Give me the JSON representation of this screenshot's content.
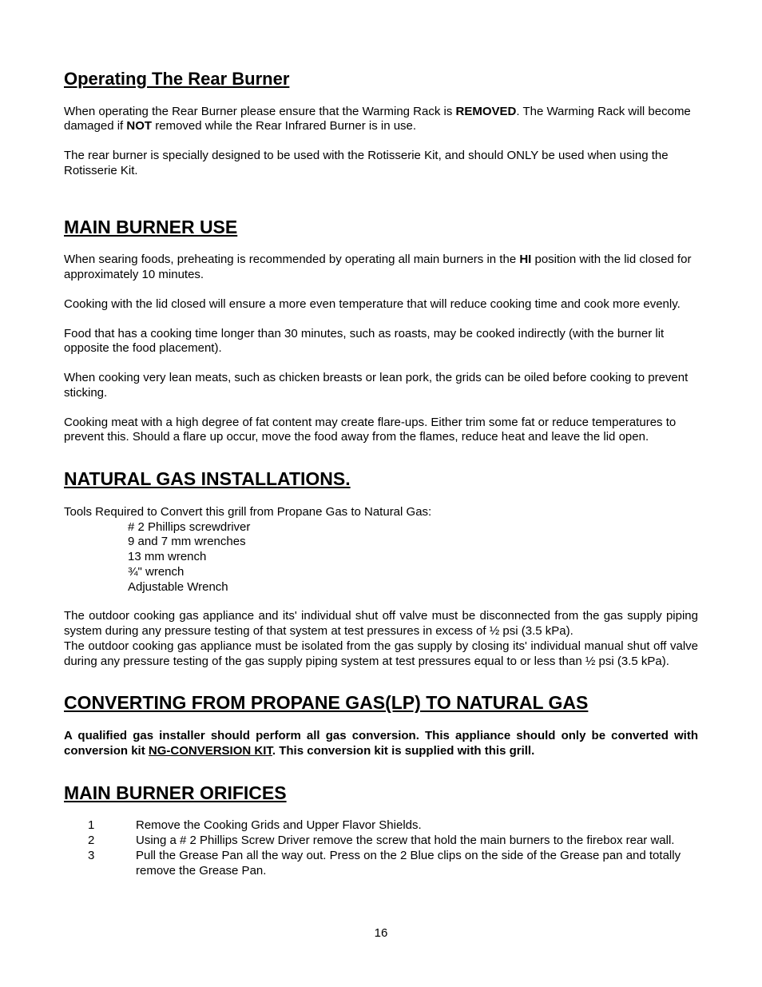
{
  "page_number": "16",
  "colors": {
    "text": "#000000",
    "background": "#ffffff"
  },
  "typography": {
    "body_font": "Arial",
    "body_size_pt": 11,
    "h1_size_pt": 17,
    "h1_weight": "bold",
    "h1_underline": true
  },
  "sections": {
    "rear_burner": {
      "title": "Operating The Rear Burner",
      "p1_a": "When operating the Rear Burner please ensure that the Warming Rack is ",
      "p1_b_bold": "REMOVED",
      "p1_c": ". The Warming Rack will become damaged if ",
      "p1_d_bold": "NOT",
      "p1_e": " removed while the Rear Infrared Burner is in use.",
      "p2": "The rear burner is specially designed to be used with the Rotisserie Kit, and should ONLY be used when using the Rotisserie Kit."
    },
    "main_burner_use": {
      "title": "MAIN BURNER USE",
      "p1_a": "When searing foods, preheating is recommended by operating all main burners in the ",
      "p1_b_bold": "HI",
      "p1_c": " position with the lid closed for approximately 10 minutes.",
      "p2": "Cooking with the lid closed will ensure a more even temperature that will reduce cooking time and cook more evenly.",
      "p3": "Food that has a cooking time longer than 30 minutes, such as roasts, may be cooked indirectly (with the burner lit opposite the food placement).",
      "p4": "When cooking very lean meats, such as chicken breasts or lean pork, the grids can be oiled before cooking to prevent sticking.",
      "p5": "Cooking meat with a high degree of fat content may create flare-ups.  Either trim some fat or reduce temperatures to prevent this.  Should a flare up occur, move the food away from the flames, reduce heat and leave the lid open."
    },
    "ng_install": {
      "title": "NATURAL GAS INSTALLATIONS.",
      "tools_intro": "Tools Required to Convert this grill from Propane Gas to Natural Gas:",
      "tools": [
        "# 2 Phillips screwdriver",
        "9 and 7 mm wrenches",
        "13 mm wrench",
        "¾\" wrench",
        "Adjustable Wrench"
      ],
      "p1": "The outdoor cooking gas appliance and its' individual shut off valve must be disconnected from the gas supply piping system during any pressure testing of that system at test pressures in excess of ½ psi (3.5 kPa).",
      "p2": "The outdoor cooking gas appliance must be isolated from the gas supply by closing its' individual manual shut off valve during any pressure testing of the gas supply piping system at test pressures equal to or less than ½ psi (3.5 kPa)."
    },
    "converting": {
      "title": "CONVERTING FROM PROPANE GAS(LP) TO NATURAL GAS",
      "p1_a": "A qualified gas installer should perform all gas conversion. This appliance should only be converted with conversion kit ",
      "p1_b_u": "NG-CONVERSION KIT",
      "p1_c": ". This conversion kit is supplied with this grill."
    },
    "orifices": {
      "title": "MAIN BURNER ORIFICES",
      "steps": [
        {
          "n": "1",
          "t": "Remove the Cooking Grids and Upper Flavor Shields."
        },
        {
          "n": "2",
          "t": "Using a # 2 Phillips Screw Driver remove the screw that hold the main burners to the firebox rear wall."
        },
        {
          "n": "3",
          "t": "Pull the Grease Pan all the way out. Press on the 2 Blue clips on the side of the Grease pan and totally remove the Grease Pan."
        }
      ]
    }
  }
}
